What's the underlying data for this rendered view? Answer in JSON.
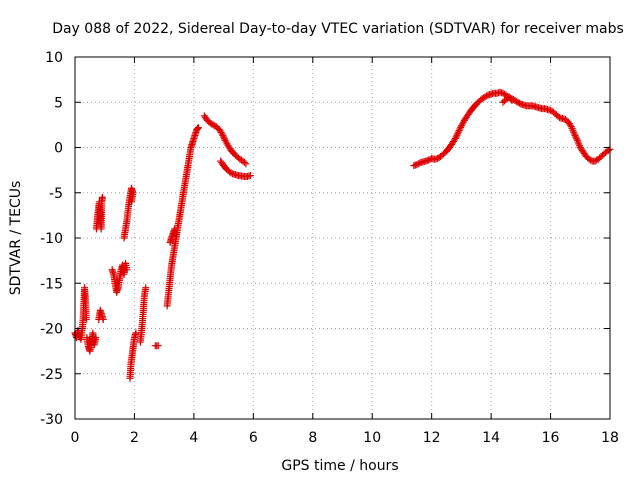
{
  "chart_data": {
    "type": "scatter",
    "title": "Day 088 of 2022, Sidereal Day-to-day VTEC variation (SDTVAR) for receiver mabs",
    "xlabel": "GPS time / hours",
    "ylabel": "SDTVAR / TECUs",
    "xlim": [
      0,
      18
    ],
    "ylim": [
      -30,
      10
    ],
    "xticks": [
      0,
      2,
      4,
      6,
      8,
      10,
      12,
      14,
      16,
      18
    ],
    "yticks": [
      10,
      5,
      0,
      -5,
      -10,
      -15,
      -20,
      -25,
      -30
    ],
    "grid": true,
    "marker": "+",
    "color": "#e00000",
    "series": [
      {
        "name": "SDTVAR",
        "segments": [
          [
            [
              0.0,
              -20.5
            ],
            [
              0.05,
              -21.0
            ],
            [
              0.1,
              -20.2
            ],
            [
              0.15,
              -20.8
            ],
            [
              0.2,
              -21.2
            ],
            [
              0.25,
              -20.0
            ]
          ],
          [
            [
              0.25,
              -20.0
            ],
            [
              0.28,
              -18.5
            ],
            [
              0.3,
              -17.0
            ],
            [
              0.32,
              -15.5
            ],
            [
              0.35,
              -16.5
            ],
            [
              0.38,
              -19.0
            ]
          ],
          [
            [
              0.4,
              -21.0
            ],
            [
              0.45,
              -22.0
            ],
            [
              0.5,
              -22.5
            ],
            [
              0.55,
              -21.5
            ],
            [
              0.6,
              -20.5
            ],
            [
              0.65,
              -21.8
            ],
            [
              0.7,
              -21.0
            ]
          ],
          [
            [
              0.72,
              -9.0
            ],
            [
              0.75,
              -8.0
            ],
            [
              0.78,
              -7.0
            ],
            [
              0.82,
              -6.0
            ],
            [
              0.85,
              -7.5
            ],
            [
              0.88,
              -9.0
            ],
            [
              0.9,
              -6.0
            ],
            [
              0.92,
              -5.5
            ]
          ],
          [
            [
              0.8,
              -19.0
            ],
            [
              0.85,
              -18.0
            ],
            [
              0.9,
              -18.5
            ],
            [
              0.95,
              -19.0
            ]
          ],
          [
            [
              1.25,
              -13.5
            ],
            [
              1.3,
              -14.0
            ],
            [
              1.35,
              -15.0
            ],
            [
              1.4,
              -16.0
            ],
            [
              1.45,
              -15.5
            ],
            [
              1.5,
              -14.5
            ],
            [
              1.55,
              -13.5
            ],
            [
              1.6,
              -13.0
            ],
            [
              1.65,
              -14.0
            ],
            [
              1.7,
              -12.8
            ],
            [
              1.75,
              -13.5
            ]
          ],
          [
            [
              1.65,
              -10.0
            ],
            [
              1.7,
              -9.0
            ],
            [
              1.75,
              -8.0
            ],
            [
              1.8,
              -6.5
            ],
            [
              1.85,
              -5.5
            ],
            [
              1.9,
              -4.5
            ],
            [
              1.95,
              -5.0
            ],
            [
              1.9,
              -6.0
            ]
          ],
          [
            [
              1.85,
              -25.5
            ],
            [
              1.88,
              -24.0
            ],
            [
              1.92,
              -23.0
            ],
            [
              1.96,
              -22.0
            ],
            [
              2.0,
              -21.0
            ],
            [
              2.05,
              -20.5
            ]
          ],
          [
            [
              2.2,
              -21.5
            ],
            [
              2.25,
              -20.0
            ],
            [
              2.3,
              -18.0
            ],
            [
              2.33,
              -16.5
            ],
            [
              2.38,
              -15.5
            ]
          ],
          [
            [
              2.7,
              -21.9
            ],
            [
              2.8,
              -21.9
            ]
          ],
          [
            [
              3.1,
              -17.5
            ],
            [
              3.15,
              -16.0
            ],
            [
              3.2,
              -14.5
            ],
            [
              3.25,
              -13.0
            ],
            [
              3.3,
              -12.0
            ],
            [
              3.35,
              -11.0
            ],
            [
              3.4,
              -10.0
            ],
            [
              3.45,
              -9.0
            ],
            [
              3.5,
              -8.0
            ],
            [
              3.55,
              -7.0
            ],
            [
              3.6,
              -6.0
            ],
            [
              3.65,
              -5.0
            ],
            [
              3.7,
              -4.0
            ],
            [
              3.75,
              -3.0
            ],
            [
              3.8,
              -2.0
            ],
            [
              3.85,
              -1.0
            ],
            [
              3.9,
              0.0
            ],
            [
              3.95,
              0.5
            ],
            [
              4.0,
              1.0
            ],
            [
              4.05,
              1.5
            ],
            [
              4.1,
              2.0
            ],
            [
              4.15,
              2.2
            ]
          ],
          [
            [
              3.2,
              -10.5
            ],
            [
              3.25,
              -10.0
            ],
            [
              3.3,
              -9.5
            ],
            [
              3.35,
              -9.0
            ],
            [
              3.4,
              -9.8
            ]
          ],
          [
            [
              4.35,
              3.5
            ],
            [
              4.45,
              3.0
            ],
            [
              4.55,
              2.7
            ],
            [
              4.65,
              2.5
            ],
            [
              4.75,
              2.3
            ],
            [
              4.85,
              2.0
            ],
            [
              4.95,
              1.5
            ],
            [
              5.05,
              0.8
            ],
            [
              5.15,
              0.2
            ],
            [
              5.25,
              -0.3
            ],
            [
              5.35,
              -0.7
            ],
            [
              5.45,
              -1.0
            ],
            [
              5.55,
              -1.3
            ],
            [
              5.65,
              -1.5
            ],
            [
              5.75,
              -1.8
            ]
          ],
          [
            [
              4.9,
              -1.5
            ],
            [
              5.0,
              -2.0
            ],
            [
              5.1,
              -2.4
            ],
            [
              5.2,
              -2.7
            ],
            [
              5.3,
              -2.9
            ],
            [
              5.4,
              -3.0
            ],
            [
              5.5,
              -3.1
            ],
            [
              5.6,
              -3.15
            ],
            [
              5.7,
              -3.2
            ],
            [
              5.8,
              -3.2
            ],
            [
              5.9,
              -3.1
            ]
          ],
          [
            [
              11.4,
              -2.0
            ],
            [
              11.5,
              -1.9
            ],
            [
              11.6,
              -1.7
            ],
            [
              11.7,
              -1.6
            ],
            [
              11.8,
              -1.5
            ],
            [
              11.9,
              -1.4
            ],
            [
              12.0,
              -1.2
            ],
            [
              12.1,
              -1.3
            ],
            [
              12.2,
              -1.2
            ],
            [
              12.3,
              -1.0
            ],
            [
              12.4,
              -0.7
            ],
            [
              12.5,
              -0.4
            ],
            [
              12.6,
              0.0
            ],
            [
              12.7,
              0.5
            ],
            [
              12.8,
              1.0
            ],
            [
              12.9,
              1.7
            ],
            [
              13.0,
              2.4
            ],
            [
              13.1,
              3.0
            ],
            [
              13.2,
              3.5
            ],
            [
              13.3,
              4.0
            ],
            [
              13.4,
              4.4
            ],
            [
              13.5,
              4.8
            ],
            [
              13.6,
              5.1
            ],
            [
              13.7,
              5.4
            ],
            [
              13.8,
              5.6
            ],
            [
              13.9,
              5.8
            ],
            [
              14.0,
              5.9
            ],
            [
              14.1,
              6.0
            ],
            [
              14.2,
              6.0
            ],
            [
              14.3,
              6.1
            ],
            [
              14.4,
              6.0
            ],
            [
              14.5,
              5.8
            ],
            [
              14.6,
              5.5
            ],
            [
              14.7,
              5.4
            ],
            [
              14.8,
              5.2
            ],
            [
              14.9,
              5.0
            ],
            [
              15.0,
              4.8
            ],
            [
              15.1,
              4.7
            ],
            [
              15.2,
              4.6
            ],
            [
              15.3,
              4.6
            ],
            [
              15.4,
              4.6
            ],
            [
              15.5,
              4.5
            ],
            [
              15.6,
              4.4
            ],
            [
              15.7,
              4.3
            ],
            [
              15.8,
              4.3
            ],
            [
              15.9,
              4.2
            ],
            [
              16.0,
              4.1
            ],
            [
              16.1,
              3.9
            ],
            [
              16.2,
              3.6
            ],
            [
              16.3,
              3.3
            ],
            [
              16.4,
              3.2
            ],
            [
              16.5,
              3.1
            ],
            [
              16.6,
              2.8
            ],
            [
              16.7,
              2.3
            ],
            [
              16.8,
              1.5
            ],
            [
              16.9,
              0.8
            ],
            [
              17.0,
              0.0
            ],
            [
              17.1,
              -0.5
            ],
            [
              17.2,
              -1.0
            ],
            [
              17.3,
              -1.3
            ],
            [
              17.4,
              -1.5
            ],
            [
              17.5,
              -1.5
            ],
            [
              17.6,
              -1.3
            ],
            [
              17.7,
              -1.0
            ],
            [
              17.8,
              -0.7
            ],
            [
              17.9,
              -0.4
            ],
            [
              18.0,
              -0.2
            ]
          ],
          [
            [
              14.4,
              5.0
            ],
            [
              14.5,
              5.3
            ],
            [
              14.6,
              5.6
            ],
            [
              14.7,
              5.2
            ]
          ]
        ]
      }
    ]
  }
}
